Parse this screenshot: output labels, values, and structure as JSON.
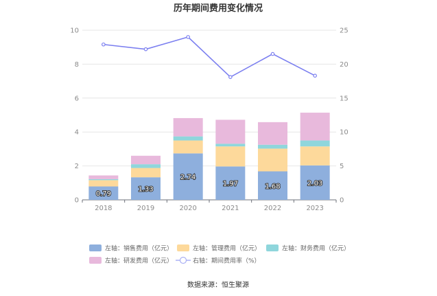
{
  "chart_data": {
    "type": "bar",
    "title": "历年期间费用变化情况",
    "categories": [
      "2018",
      "2019",
      "2020",
      "2021",
      "2022",
      "2023"
    ],
    "left_axis": {
      "min": 0,
      "max": 10,
      "ticks": [
        "0",
        "2",
        "4",
        "6",
        "8",
        "10"
      ]
    },
    "right_axis": {
      "min": 0,
      "max": 25,
      "ticks": [
        "0",
        "5",
        "10",
        "15",
        "20",
        "25"
      ]
    },
    "series": [
      {
        "name": "左轴：销售费用（亿元）",
        "type": "bar",
        "axis": "left",
        "color": "#8eafdd",
        "values": [
          0.79,
          1.33,
          2.74,
          1.97,
          1.68,
          2.03
        ],
        "labels": [
          "0.79",
          "1.33",
          "2.74",
          "1.97",
          "1.68",
          "2.03"
        ]
      },
      {
        "name": "左轴：管理费用（亿元）",
        "type": "bar",
        "axis": "left",
        "color": "#fdd99b",
        "values": [
          0.37,
          0.55,
          0.76,
          1.18,
          1.34,
          1.12
        ]
      },
      {
        "name": "左轴：财务费用（亿元）",
        "type": "bar",
        "axis": "left",
        "color": "#8fd6dc",
        "values": [
          0.06,
          0.22,
          0.24,
          0.16,
          0.23,
          0.35
        ]
      },
      {
        "name": "左轴：研发费用（亿元）",
        "type": "bar",
        "axis": "left",
        "color": "#e8b9dc",
        "values": [
          0.22,
          0.5,
          1.08,
          1.41,
          1.33,
          1.64
        ]
      },
      {
        "name": "右轴：期间费用率（%）",
        "type": "line",
        "axis": "right",
        "color": "#7b7ff0",
        "values": [
          22.9,
          22.2,
          24.0,
          18.1,
          21.5,
          18.3
        ]
      }
    ],
    "legend_position": "bottom",
    "source": "数据来源：恒生聚源"
  }
}
